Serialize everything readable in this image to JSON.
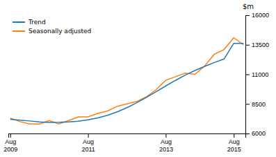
{
  "chart_data": {
    "type": "line",
    "ylabel": "$m",
    "categories": [
      "Aug\n2009",
      null,
      null,
      null,
      null,
      null,
      null,
      null,
      "Aug\n2011",
      null,
      null,
      null,
      null,
      null,
      null,
      null,
      "Aug\n2013",
      null,
      null,
      null,
      null,
      null,
      null,
      "Aug\n2015",
      null
    ],
    "series": [
      {
        "name": "Trend",
        "values": [
          7200,
          7130,
          7060,
          6980,
          6940,
          6950,
          6980,
          7040,
          7150,
          7320,
          7540,
          7830,
          8180,
          8590,
          9050,
          9530,
          10020,
          10490,
          10930,
          11320,
          11670,
          12000,
          12300,
          13620,
          13620
        ]
      },
      {
        "name": "Seasonally adjusted",
        "values": [
          7300,
          7000,
          6800,
          6800,
          7100,
          6800,
          7100,
          7400,
          7400,
          7700,
          7900,
          8300,
          8500,
          8700,
          9100,
          9700,
          10500,
          10800,
          11100,
          11000,
          11700,
          12700,
          13100,
          14100,
          13500
        ]
      }
    ],
    "ylim": [
      6000,
      16000
    ],
    "yticks": [
      6000,
      8500,
      11000,
      13500,
      16000
    ],
    "grid": false,
    "legend": "upper left"
  }
}
